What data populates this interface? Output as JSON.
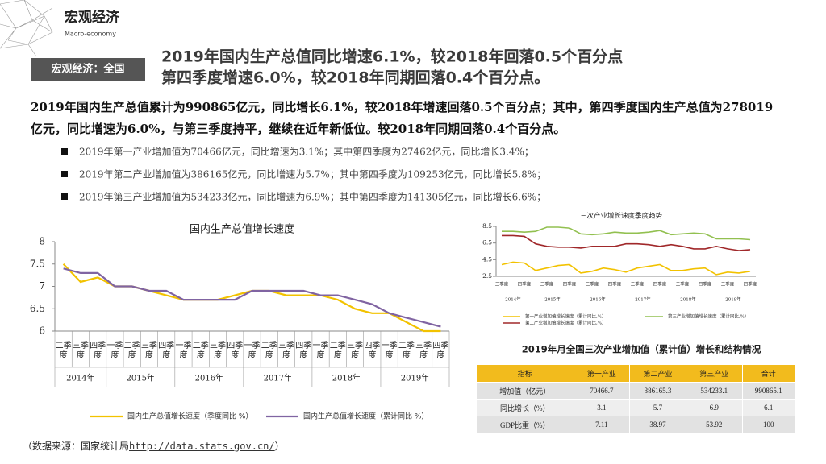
{
  "header": {
    "title": "宏观经济",
    "subtitle": "Macro-economy"
  },
  "tag": "宏观经济：全国",
  "headline": [
    "2019年国内生产总值同比增速6.1%，较2018年回落0.5个百分点",
    "第四季度增速6.0%，较2018年同期回落0.4个百分点。"
  ],
  "paragraph": "2019年国内生产总值累计为990865亿元，同比增长6.1%，较2018年增速回落0.5个百分点；其中，第四季度国内生产总值为278019亿元，同比增速为6.0%，与第三季度持平，继续在近年新低位。较2018年同期回落0.4个百分点。",
  "bullets": [
    "2019年第一产业增加值为70466亿元，同比增速为3.1%；其中第四季度为27462亿元，同比增长3.4%；",
    "2019年第二产业增加值为386165亿元，同比增速为5.7%；其中第四季度为109253亿元，同比增长5.8%；",
    "2019年第三产业增加值为534233亿元，同比增速为6.9%；其中第四季度为141305亿元，同比增长6.6%；"
  ],
  "chart_data": [
    {
      "type": "line",
      "title": "国内生产总值增长速度",
      "groups": [
        {
          "label": "2014年",
          "categories": [
            "二季度",
            "三季度",
            "四季度"
          ]
        },
        {
          "label": "2015年",
          "categories": [
            "一季度",
            "二季度",
            "三季度",
            "四季度"
          ]
        },
        {
          "label": "2016年",
          "categories": [
            "一季度",
            "二季度",
            "三季度",
            "四季度"
          ]
        },
        {
          "label": "2017年",
          "categories": [
            "一季度",
            "二季度",
            "三季度",
            "四季度"
          ]
        },
        {
          "label": "2018年",
          "categories": [
            "一季度",
            "二季度",
            "三季度",
            "四季度"
          ]
        },
        {
          "label": "2019年",
          "categories": [
            "一季度",
            "二季度",
            "三季度",
            "四季度"
          ]
        }
      ],
      "series": [
        {
          "name": "国内生产总值增长速度（季度同比 %）",
          "color": "#f2c200",
          "values": [
            7.5,
            7.1,
            7.2,
            7.0,
            7.0,
            6.9,
            6.8,
            6.7,
            6.7,
            6.7,
            6.8,
            6.9,
            6.9,
            6.8,
            6.8,
            6.8,
            6.7,
            6.5,
            6.4,
            6.4,
            6.2,
            6.0,
            6.0
          ]
        },
        {
          "name": "国内生产总值增长速度（累计同比 %）",
          "color": "#8064a2",
          "values": [
            7.4,
            7.3,
            7.3,
            7.0,
            7.0,
            6.9,
            6.9,
            6.7,
            6.7,
            6.7,
            6.7,
            6.9,
            6.9,
            6.9,
            6.9,
            6.8,
            6.8,
            6.7,
            6.6,
            6.4,
            6.3,
            6.2,
            6.1
          ]
        }
      ],
      "ylim": [
        6,
        8
      ],
      "yticks": [
        6,
        6.5,
        7,
        7.5,
        8
      ],
      "grid": false
    },
    {
      "type": "line",
      "title": "三次产业增长速度季度趋势",
      "groups": [
        {
          "label": "2014年",
          "categories": [
            "二季度",
            null,
            "四季度"
          ]
        },
        {
          "label": "2015年",
          "categories": [
            null,
            "二季度",
            null,
            "四季度"
          ]
        },
        {
          "label": "2016年",
          "categories": [
            null,
            "二季度",
            null,
            "四季度"
          ]
        },
        {
          "label": "2017年",
          "categories": [
            null,
            "二季度",
            null,
            "四季度"
          ]
        },
        {
          "label": "2018年",
          "categories": [
            null,
            "二季度",
            null,
            "四季度"
          ]
        },
        {
          "label": "2019年",
          "categories": [
            null,
            "二季度",
            null,
            "四季度"
          ]
        }
      ],
      "series": [
        {
          "name": "第一产业增加值增长速度（累计同比,%）",
          "color": "#f2c200",
          "values": [
            3.9,
            4.2,
            4.1,
            3.2,
            3.5,
            3.8,
            3.9,
            2.9,
            3.1,
            3.5,
            3.3,
            3.0,
            3.5,
            3.7,
            3.9,
            3.2,
            3.2,
            3.4,
            3.5,
            2.7,
            3.0,
            2.9,
            3.1
          ]
        },
        {
          "name": "第二产业增加值增长速度（累计同比,%）",
          "color": "#a0282a",
          "values": [
            7.4,
            7.4,
            7.3,
            6.4,
            6.1,
            6.0,
            6.0,
            5.9,
            6.1,
            6.1,
            6.1,
            6.4,
            6.4,
            6.3,
            6.1,
            6.3,
            6.1,
            5.8,
            5.8,
            6.1,
            5.8,
            5.6,
            5.7
          ]
        },
        {
          "name": "第三产业增加值增长速度（累计同比,%）",
          "color": "#92c050",
          "values": [
            7.9,
            7.9,
            7.8,
            7.9,
            8.4,
            8.4,
            8.3,
            7.6,
            7.5,
            7.6,
            7.8,
            7.7,
            7.7,
            7.8,
            8.0,
            7.5,
            7.6,
            7.7,
            7.6,
            7.0,
            7.0,
            7.0,
            6.9
          ]
        }
      ],
      "ylim": [
        2.5,
        8.5
      ],
      "yticks": [
        2.5,
        4.5,
        6.5,
        8.5
      ],
      "grid": false
    }
  ],
  "table": {
    "title": "2019年月全国三次产业增加值（累计值）增长和结构情况",
    "header": [
      "指标",
      "第一产业",
      "第二产业",
      "第三产业",
      "合计"
    ],
    "rows": [
      [
        "增加值（亿元）",
        "70466.7",
        "386165.3",
        "534233.1",
        "990865.1"
      ],
      [
        "同比增长（%）",
        "3.1",
        "5.7",
        "6.9",
        "6.1"
      ],
      [
        "GDP比重（%）",
        "7.11",
        "38.97",
        "53.92",
        "100"
      ]
    ]
  },
  "source": {
    "prefix": "（数据来源：国家统计局",
    "link": "http://data.stats.gov.cn/",
    "suffix": "）"
  }
}
